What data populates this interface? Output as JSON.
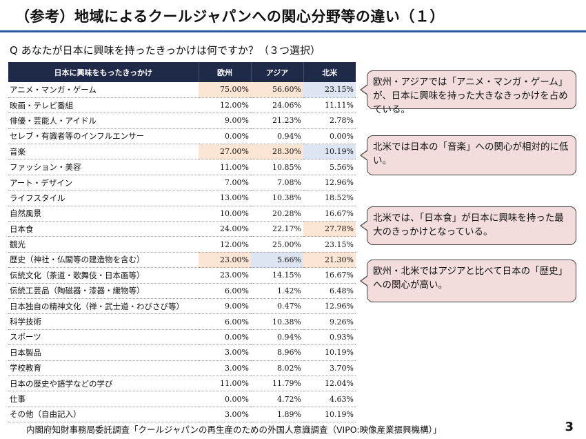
{
  "page": {
    "title": "（参考）地域によるクールジャパンへの関心分野等の違い（１）",
    "question": "Q  あなたが日本に興味を持ったきっかけは何ですか？（３つ選択）",
    "footer": "内閣府知財事務局委託調査「クールジャパンの再生産のための外国人意識調査（VIPO:映像産業振興機構）」",
    "page_number": "3"
  },
  "colors": {
    "header_bg": "#1e2a48",
    "title_rule": "#2b57a6",
    "highlight_orange": "#fce5d4",
    "highlight_blue": "#dce5f1",
    "callout_bg": "#f2dcdc"
  },
  "table": {
    "headers": [
      "日本に興味をもったきっかけ",
      "欧州",
      "アジア",
      "北米"
    ],
    "rows": [
      {
        "label": "アニメ・マンガ・ゲーム",
        "values": [
          "75.00%",
          "56.60%",
          "23.15%"
        ],
        "highlights": [
          "orange",
          "orange",
          "blue"
        ]
      },
      {
        "label": "映画・テレビ番組",
        "values": [
          "12.00%",
          "24.06%",
          "11.11%"
        ],
        "highlights": [
          "",
          "",
          ""
        ]
      },
      {
        "label": "俳優・芸能人・アイドル",
        "values": [
          "9.00%",
          "21.23%",
          "2.78%"
        ],
        "highlights": [
          "",
          "",
          ""
        ]
      },
      {
        "label": "セレブ・有識者等のインフルエンサー",
        "values": [
          "0.00%",
          "0.94%",
          "0.00%"
        ],
        "highlights": [
          "",
          "",
          ""
        ]
      },
      {
        "label": "音楽",
        "values": [
          "27.00%",
          "28.30%",
          "10.19%"
        ],
        "highlights": [
          "orange",
          "orange",
          "blue"
        ]
      },
      {
        "label": "ファッション・美容",
        "values": [
          "11.00%",
          "10.85%",
          "5.56%"
        ],
        "highlights": [
          "",
          "",
          ""
        ]
      },
      {
        "label": "アート・デザイン",
        "values": [
          "7.00%",
          "7.08%",
          "12.96%"
        ],
        "highlights": [
          "",
          "",
          ""
        ]
      },
      {
        "label": "ライフスタイル",
        "values": [
          "13.00%",
          "10.38%",
          "18.52%"
        ],
        "highlights": [
          "",
          "",
          ""
        ]
      },
      {
        "label": "自然風景",
        "values": [
          "10.00%",
          "20.28%",
          "16.67%"
        ],
        "highlights": [
          "",
          "",
          ""
        ]
      },
      {
        "label": "日本食",
        "values": [
          "24.00%",
          "22.17%",
          "27.78%"
        ],
        "highlights": [
          "",
          "",
          "orange"
        ]
      },
      {
        "label": "観光",
        "values": [
          "12.00%",
          "25.00%",
          "23.15%"
        ],
        "highlights": [
          "",
          "",
          ""
        ]
      },
      {
        "label": "歴史（神社・仏閣等の建造物を含む）",
        "values": [
          "23.00%",
          "5.66%",
          "21.30%"
        ],
        "highlights": [
          "orange",
          "blue",
          "orange"
        ]
      },
      {
        "label": "伝統文化（茶道・歌舞伎・日本画等）",
        "values": [
          "23.00%",
          "14.15%",
          "16.67%"
        ],
        "highlights": [
          "",
          "",
          ""
        ]
      },
      {
        "label": "伝統工芸品（陶磁器・漆器・織物等）",
        "values": [
          "6.00%",
          "1.42%",
          "6.48%"
        ],
        "highlights": [
          "",
          "",
          ""
        ]
      },
      {
        "label": "日本独自の精神文化（禅・武士道・わびさび等）",
        "values": [
          "9.00%",
          "0.47%",
          "12.96%"
        ],
        "highlights": [
          "",
          "",
          ""
        ]
      },
      {
        "label": "科学技術",
        "values": [
          "6.00%",
          "10.38%",
          "9.26%"
        ],
        "highlights": [
          "",
          "",
          ""
        ]
      },
      {
        "label": "スポーツ",
        "values": [
          "0.00%",
          "0.94%",
          "0.93%"
        ],
        "highlights": [
          "",
          "",
          ""
        ]
      },
      {
        "label": "日本製品",
        "values": [
          "3.00%",
          "8.96%",
          "10.19%"
        ],
        "highlights": [
          "",
          "",
          ""
        ]
      },
      {
        "label": "学校教育",
        "values": [
          "3.00%",
          "8.02%",
          "3.70%"
        ],
        "highlights": [
          "",
          "",
          ""
        ]
      },
      {
        "label": "日本の歴史や語学などの学び",
        "values": [
          "11.00%",
          "11.79%",
          "12.04%"
        ],
        "highlights": [
          "",
          "",
          ""
        ]
      },
      {
        "label": "仕事",
        "values": [
          "0.00%",
          "4.72%",
          "4.63%"
        ],
        "highlights": [
          "",
          "",
          ""
        ]
      },
      {
        "label": "その他（自由記入）",
        "values": [
          "3.00%",
          "1.89%",
          "10.19%"
        ],
        "highlights": [
          "",
          "",
          ""
        ]
      }
    ]
  },
  "callouts": [
    {
      "text": "欧州・アジアでは「アニメ・マンガ・ゲーム」が、日本に興味を持った大きなきっかけを占めている。"
    },
    {
      "text": "北米では日本の「音楽」への関心が相対的に低い。"
    },
    {
      "text": "北米では、「日本食」が日本に興味を持った最大のきっかけとなっている。"
    },
    {
      "text": "欧州・北米ではアジアと比べて日本の「歴史」への関心が高い。"
    }
  ]
}
